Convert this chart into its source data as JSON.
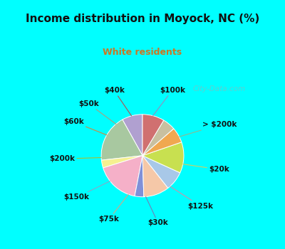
{
  "title": "Income distribution in Moyock, NC (%)",
  "subtitle": "White residents",
  "title_color": "#111111",
  "subtitle_color": "#cc7722",
  "background_outer": "#00ffff",
  "background_chart": "#dff0e8",
  "labels": [
    "$100k",
    "> $200k",
    "$20k",
    "$125k",
    "$30k",
    "$75k",
    "$150k",
    "$200k",
    "$60k",
    "$50k",
    "$40k"
  ],
  "values": [
    8.0,
    18.5,
    3.0,
    17.0,
    3.5,
    10.0,
    7.5,
    12.0,
    6.0,
    5.0,
    8.5
  ],
  "colors": [
    "#b0a0d0",
    "#a8c8a0",
    "#f5f090",
    "#f5b0c8",
    "#8090d8",
    "#f5c8a8",
    "#a8c8e8",
    "#c8e050",
    "#f0a850",
    "#c8c0a0",
    "#d07070"
  ],
  "startangle": 90,
  "wedge_edge_color": "#ffffff",
  "line_colors": [
    "#9090c0",
    "#90b890",
    "#d0d060",
    "#d090a8",
    "#7080b8",
    "#d0a888",
    "#88a8c8",
    "#a8c030",
    "#d08840",
    "#a8a080",
    "#b05050"
  ],
  "watermark": "City-Data.com",
  "label_fontsize": 7.5,
  "title_fontsize": 11,
  "subtitle_fontsize": 9
}
